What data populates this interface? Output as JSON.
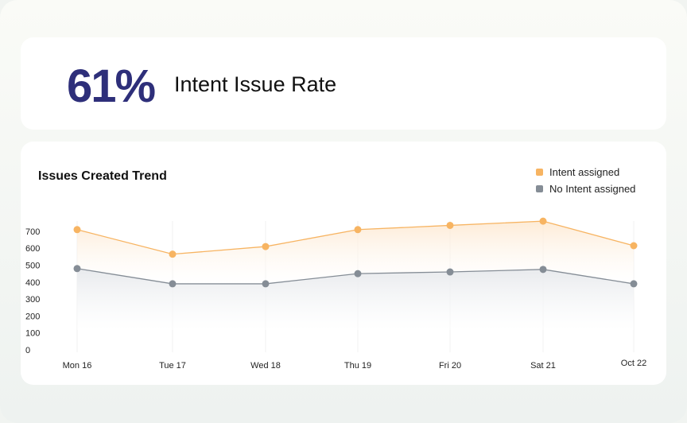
{
  "kpi": {
    "value": "61%",
    "label": "Intent Issue Rate"
  },
  "chart_data": {
    "type": "area",
    "title": "Issues Created Trend",
    "categories": [
      "Mon 16",
      "Tue 17",
      "Wed 18",
      "Thu 19",
      "Fri 20",
      "Sat 21",
      "Oct 22"
    ],
    "yticks": [
      0,
      100,
      200,
      300,
      400,
      500,
      600,
      700
    ],
    "ylim": [
      0,
      800
    ],
    "xlabel": "",
    "ylabel": "",
    "legend_position": "top-right",
    "series": [
      {
        "name": "Intent assigned",
        "color": "#f7b462",
        "values": [
          710,
          565,
          610,
          710,
          735,
          760,
          615
        ]
      },
      {
        "name": "No Intent assigned",
        "color": "#858d96",
        "values": [
          480,
          390,
          390,
          450,
          460,
          475,
          390
        ]
      }
    ]
  }
}
